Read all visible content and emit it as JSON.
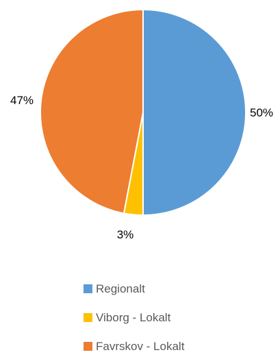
{
  "chart_data": {
    "type": "pie",
    "title": "",
    "slices": [
      {
        "label": "Regionalt",
        "value": 50,
        "display": "50%",
        "color": "#5B9BD5"
      },
      {
        "label": "Viborg - Lokalt",
        "value": 3,
        "display": "3%",
        "color": "#FFC000"
      },
      {
        "label": "Favrskov - Lokalt",
        "value": 47,
        "display": "47%",
        "color": "#ED7D31"
      }
    ],
    "start": "12 o'clock",
    "direction": "clockwise",
    "legend_position": "bottom"
  }
}
